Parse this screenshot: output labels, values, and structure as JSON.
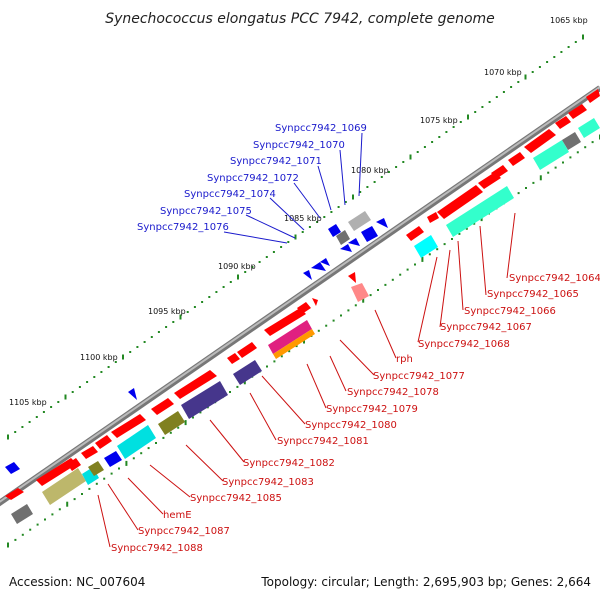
{
  "title": "Synechococcus elongatus PCC 7942, complete genome",
  "footer": {
    "accession": "Accession: NC_007604",
    "summary": "Topology: circular; Length: 2,695,903 bp; Genes: 2,664"
  },
  "kbp_ticks": [
    "1065 kbp",
    "1070 kbp",
    "1075 kbp",
    "1080 kbp",
    "1085 kbp",
    "1090 kbp",
    "1095 kbp",
    "1100 kbp",
    "1105 kbp"
  ],
  "blue_labels": [
    "Synpcc7942_1069",
    "Synpcc7942_1070",
    "Synpcc7942_1071",
    "Synpcc7942_1072",
    "Synpcc7942_1074",
    "Synpcc7942_1075",
    "Synpcc7942_1076"
  ],
  "red_labels": [
    "Synpcc7942_1064",
    "Synpcc7942_1065",
    "Synpcc7942_1066",
    "Synpcc7942_1067",
    "Synpcc7942_1068",
    "rph",
    "Synpcc7942_1077",
    "Synpcc7942_1078",
    "Synpcc7942_1079",
    "Synpcc7942_1080",
    "Synpcc7942_1081",
    "Synpcc7942_1082",
    "Synpcc7942_1083",
    "Synpcc7942_1085",
    "hemE",
    "Synpcc7942_1087",
    "Synpcc7942_1088"
  ],
  "colors": {
    "forward": "#ff0000",
    "reverse": "#0000ee",
    "backbone": "#888888",
    "ticks": "#228822",
    "cog_cyan": "#00e0e0",
    "cog_aqua": "#33ffcc",
    "cog_navy": "#46368c",
    "cog_olive": "#808020",
    "cog_tan": "#bdb76b",
    "cog_gray": "#707070",
    "cog_pink": "#ff6699",
    "cog_orange": "#ff9900",
    "cog_magenta": "#e02080"
  }
}
